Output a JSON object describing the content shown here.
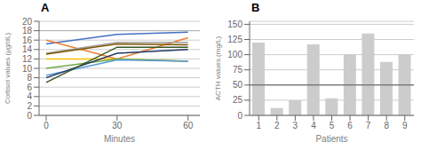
{
  "chart_data": [
    {
      "type": "line",
      "title": "A",
      "xlabel": "Minutes",
      "ylabel": "Cortisol values (µg/dL)",
      "x": [
        0,
        30,
        60
      ],
      "xlim": [
        -3,
        65
      ],
      "xticks": [
        0,
        30,
        60
      ],
      "ylim": [
        0,
        20
      ],
      "yticks": [
        0,
        2,
        4,
        6,
        8,
        10,
        12,
        14,
        16,
        18,
        20
      ],
      "grid": true,
      "reference_line": {
        "value": 18,
        "color": "#b0b0b0"
      },
      "series": [
        {
          "values": [
            15.2,
            17.2,
            17.7
          ],
          "color": "#4472c4"
        },
        {
          "values": [
            16.0,
            12.0,
            16.5
          ],
          "color": "#ed7d31"
        },
        {
          "values": [
            13.2,
            15.5,
            15.5
          ],
          "color": "#a0a0a0"
        },
        {
          "values": [
            13.0,
            15.2,
            15.0
          ],
          "color": "#7f5200"
        },
        {
          "values": [
            12.0,
            12.0,
            11.5
          ],
          "color": "#ffc000"
        },
        {
          "values": [
            10.0,
            12.0,
            11.5
          ],
          "color": "#70ad47"
        },
        {
          "values": [
            8.5,
            11.8,
            11.5
          ],
          "color": "#5b9bd5"
        },
        {
          "values": [
            8.0,
            13.2,
            14.0
          ],
          "color": "#203864"
        },
        {
          "values": [
            7.0,
            14.5,
            14.5
          ],
          "color": "#375623"
        }
      ]
    },
    {
      "type": "bar",
      "title": "B",
      "xlabel": "Patients",
      "ylabel": "ACTH values (mg/L)",
      "categories": [
        1,
        2,
        3,
        4,
        5,
        6,
        7,
        8,
        9
      ],
      "values": [
        120,
        12,
        25,
        117,
        28,
        101,
        135,
        88,
        101
      ],
      "color": "#cccccc",
      "ylim": [
        0,
        155
      ],
      "yticks": [
        0,
        25,
        50,
        75,
        100,
        125,
        150
      ],
      "grid": true,
      "reference_line": {
        "value": 50,
        "color": "#555555"
      }
    }
  ]
}
